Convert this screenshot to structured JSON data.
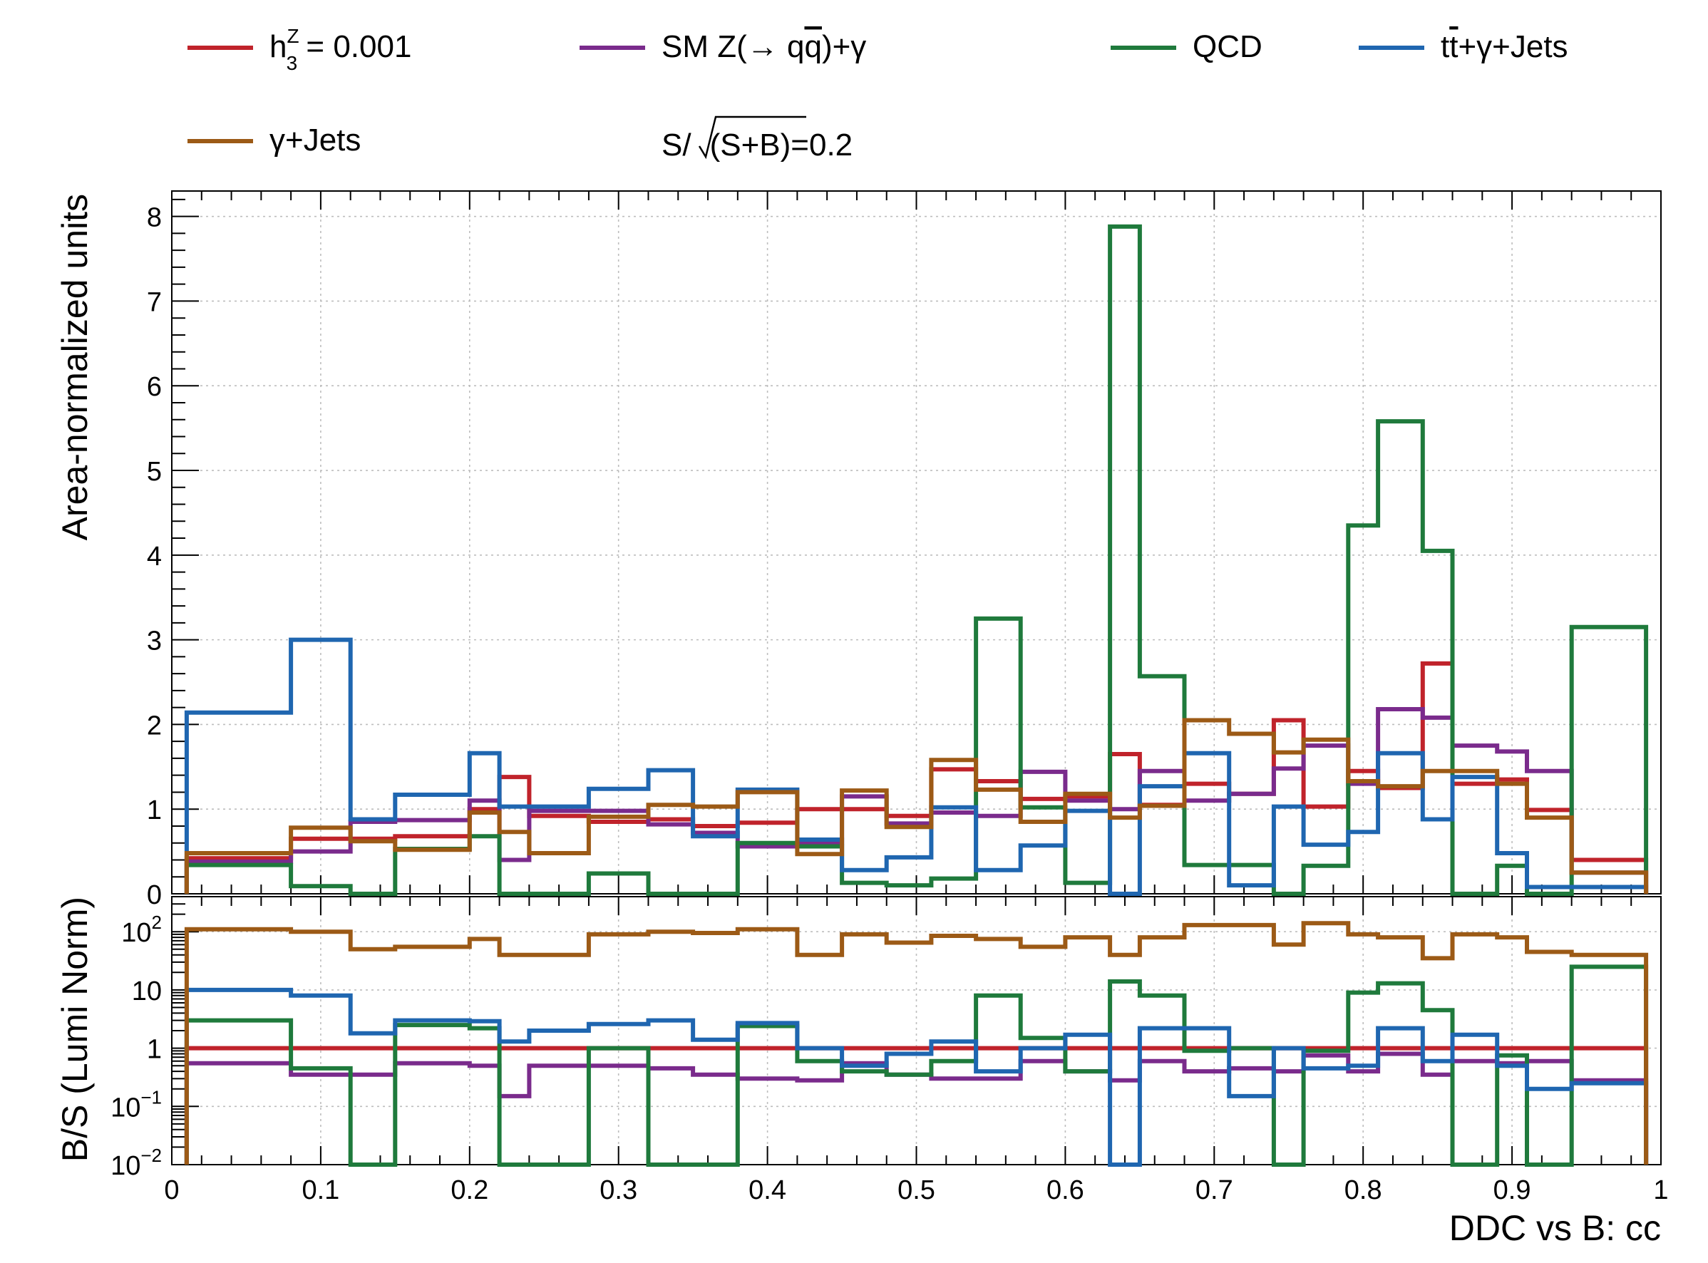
{
  "chart_data": [
    {
      "type": "line",
      "step": true,
      "ylabel": "Area-normalized units",
      "xlim": [
        0,
        1
      ],
      "ylim": [
        0,
        8.3
      ],
      "grid": true,
      "legend_position": "top",
      "xticks": [
        "0",
        "0.1",
        "0.2",
        "0.3",
        "0.4",
        "0.5",
        "0.6",
        "0.7",
        "0.8",
        "0.9",
        "1"
      ],
      "yticks": [
        "0",
        "1",
        "2",
        "3",
        "4",
        "5",
        "6",
        "7",
        "8"
      ],
      "bin_edges": [
        0.01,
        0.08,
        0.12,
        0.15,
        0.2,
        0.22,
        0.24,
        0.28,
        0.32,
        0.35,
        0.38,
        0.42,
        0.45,
        0.48,
        0.51,
        0.54,
        0.57,
        0.6,
        0.63,
        0.65,
        0.68,
        0.71,
        0.74,
        0.76,
        0.79,
        0.81,
        0.84,
        0.86,
        0.89,
        0.91,
        0.94,
        0.99
      ],
      "series": [
        {
          "name": "h_3^Z = 0.001",
          "color": "#c0232b",
          "values": [
            0.42,
            0.65,
            0.65,
            0.68,
            1.0,
            1.38,
            0.92,
            0.85,
            0.88,
            0.8,
            0.84,
            1.0,
            1.0,
            0.92,
            1.47,
            1.33,
            1.12,
            1.15,
            1.65,
            1.05,
            1.3,
            1.18,
            2.05,
            1.03,
            1.45,
            1.25,
            2.72,
            1.3,
            1.35,
            0.99,
            0.4
          ]
        },
        {
          "name": "SM Z(→ qq̄)+γ",
          "color": "#7a2b8c",
          "values": [
            0.38,
            0.5,
            0.85,
            0.87,
            1.1,
            0.4,
            0.98,
            0.98,
            0.82,
            0.72,
            0.56,
            0.6,
            1.15,
            0.83,
            0.96,
            0.92,
            1.44,
            1.1,
            1.0,
            1.45,
            1.1,
            1.18,
            1.48,
            1.75,
            1.3,
            2.18,
            2.08,
            1.75,
            1.68,
            1.45,
            0.25
          ]
        },
        {
          "name": "QCD",
          "color": "#1f7a3c",
          "values": [
            0.34,
            0.09,
            0.0,
            0.53,
            0.68,
            0.0,
            0.0,
            0.24,
            0.0,
            0.0,
            0.6,
            0.56,
            0.13,
            0.1,
            0.18,
            3.25,
            1.02,
            0.13,
            7.88,
            2.57,
            0.34,
            0.34,
            0.0,
            0.33,
            4.35,
            5.58,
            4.05,
            0.0,
            0.33,
            0.0,
            3.15
          ]
        },
        {
          "name": "tt̄+γ+Jets",
          "color": "#1f66b0",
          "values": [
            2.14,
            3.0,
            0.88,
            1.17,
            1.66,
            1.03,
            1.03,
            1.24,
            1.46,
            0.68,
            1.23,
            0.64,
            0.28,
            0.43,
            1.02,
            0.28,
            0.57,
            0.98,
            0.0,
            1.27,
            1.66,
            0.1,
            1.03,
            0.58,
            0.73,
            1.66,
            0.88,
            1.38,
            0.48,
            0.08,
            0.08
          ]
        },
        {
          "name": "γ+Jets",
          "color": "#9c5a16",
          "values": [
            0.48,
            0.78,
            0.62,
            0.52,
            0.96,
            0.73,
            0.48,
            0.91,
            1.05,
            1.03,
            1.2,
            0.47,
            1.22,
            0.79,
            1.58,
            1.23,
            0.85,
            1.18,
            0.9,
            1.04,
            2.05,
            1.89,
            1.67,
            1.82,
            1.33,
            1.27,
            1.45,
            1.45,
            1.3,
            0.9,
            0.25
          ]
        }
      ]
    },
    {
      "type": "line",
      "step": true,
      "log_y": true,
      "xlabel": "DDC vs B: cc",
      "ylabel": "B/S (Lumi Norm)",
      "xlim": [
        0,
        1
      ],
      "ylim": [
        0.01,
        400
      ],
      "grid": true,
      "xticks": [
        "0",
        "0.1",
        "0.2",
        "0.3",
        "0.4",
        "0.5",
        "0.6",
        "0.7",
        "0.8",
        "0.9",
        "1"
      ],
      "yticks": [
        {
          "value": 100,
          "base": "10",
          "exp": "2"
        },
        {
          "value": 10,
          "base": "10",
          "exp": ""
        },
        {
          "value": 1,
          "base": "1",
          "exp": ""
        },
        {
          "value": 0.1,
          "base": "10",
          "exp": "−1"
        },
        {
          "value": 0.01,
          "base": "10",
          "exp": "−2"
        }
      ],
      "bin_edges": [
        0.01,
        0.08,
        0.12,
        0.15,
        0.2,
        0.22,
        0.24,
        0.28,
        0.32,
        0.35,
        0.38,
        0.42,
        0.45,
        0.48,
        0.51,
        0.54,
        0.57,
        0.6,
        0.63,
        0.65,
        0.68,
        0.71,
        0.74,
        0.76,
        0.79,
        0.81,
        0.84,
        0.86,
        0.89,
        0.91,
        0.94,
        0.99
      ],
      "series": [
        {
          "name": "h_3^Z = 0.001",
          "color": "#c0232b",
          "values": [
            1,
            1,
            1,
            1,
            1,
            1,
            1,
            1,
            1,
            1,
            1,
            1,
            1,
            1,
            1,
            1,
            1,
            1,
            1,
            1,
            1,
            1,
            1,
            1,
            1,
            1,
            1,
            1,
            1,
            1,
            1
          ]
        },
        {
          "name": "SM Z(→ qq̄)+γ",
          "color": "#7a2b8c",
          "values": [
            0.55,
            0.35,
            0.35,
            0.55,
            0.5,
            0.15,
            0.5,
            0.5,
            0.45,
            0.35,
            0.3,
            0.28,
            0.55,
            0.35,
            0.3,
            0.3,
            0.6,
            0.4,
            0.28,
            0.6,
            0.4,
            0.45,
            0.4,
            0.75,
            0.4,
            0.8,
            0.35,
            0.6,
            0.55,
            0.6,
            0.28
          ]
        },
        {
          "name": "QCD",
          "color": "#1f7a3c",
          "values": [
            3.0,
            0.45,
            0.01,
            2.5,
            2.2,
            0.01,
            0.01,
            1.0,
            0.01,
            0.01,
            2.4,
            0.6,
            0.4,
            0.35,
            0.6,
            8.0,
            1.5,
            0.4,
            14.0,
            8.0,
            0.9,
            1.0,
            0.01,
            0.9,
            9.0,
            13.0,
            4.5,
            0.01,
            0.75,
            0.01,
            25.0
          ]
        },
        {
          "name": "tt̄+γ+Jets",
          "color": "#1f66b0",
          "values": [
            10.0,
            8.0,
            1.8,
            3.0,
            2.9,
            1.3,
            2.0,
            2.6,
            3.0,
            1.4,
            2.7,
            1.0,
            0.5,
            0.8,
            1.3,
            0.4,
            1.0,
            1.7,
            0.01,
            2.2,
            2.2,
            0.15,
            1.0,
            0.45,
            0.5,
            2.2,
            0.6,
            1.7,
            0.5,
            0.2,
            0.25
          ]
        },
        {
          "name": "γ+Jets",
          "color": "#9c5a16",
          "values": [
            110,
            100,
            50,
            55,
            75,
            40,
            40,
            90,
            100,
            95,
            110,
            40,
            90,
            65,
            85,
            75,
            55,
            80,
            40,
            80,
            130,
            130,
            60,
            140,
            90,
            80,
            35,
            90,
            80,
            45,
            40
          ]
        }
      ]
    }
  ],
  "legend": [
    {
      "text": "h",
      "sup": "Z",
      "sub": "3",
      "rest": " = 0.001",
      "color": "#c0232b"
    },
    {
      "text": "SM Z(→ q",
      "qbar": "q",
      "rest": ")+γ",
      "color": "#7a2b8c"
    },
    {
      "text": "QCD",
      "color": "#1f7a3c"
    },
    {
      "text": "t",
      "tbar": "t",
      "rest": "+γ+Jets",
      "color": "#1f66b0"
    },
    {
      "text": "γ+Jets",
      "color": "#9c5a16"
    }
  ],
  "significance": {
    "pre": "S/",
    "root": "(S+B)",
    "post": "=0.2"
  }
}
